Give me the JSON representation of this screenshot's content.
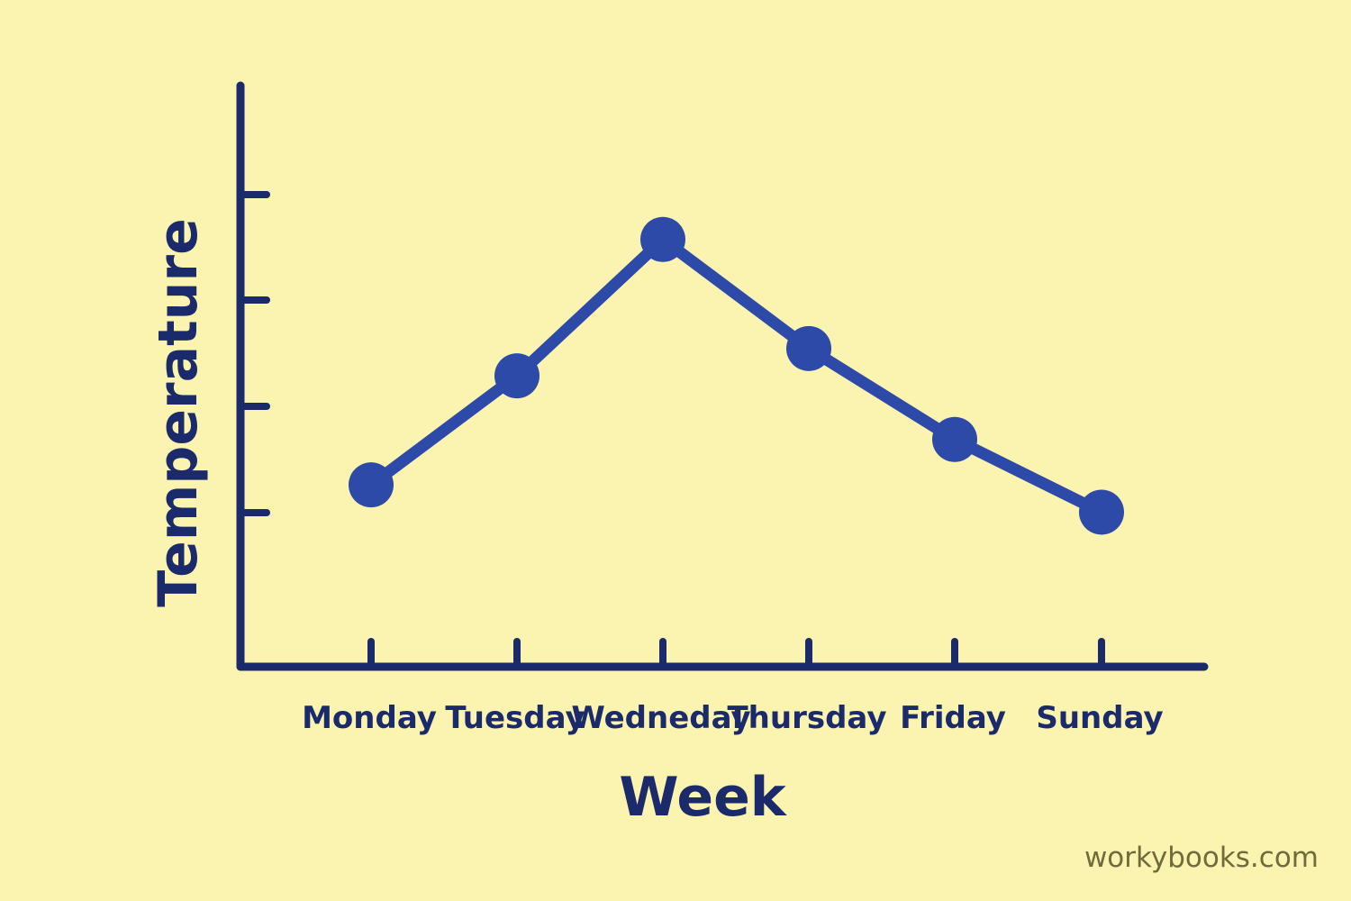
{
  "chart_data": {
    "type": "line",
    "title": "",
    "xlabel": "Week",
    "ylabel": "Temperature",
    "categories": [
      "Monday",
      "Tuesday",
      "Wedneday",
      "Thursday",
      "Friday",
      "Sunday"
    ],
    "series": [
      {
        "values": [
          2.0,
          3.2,
          4.7,
          3.5,
          2.5,
          1.7
        ]
      }
    ],
    "ylim": [
      0,
      5.5
    ],
    "y_tick_count": 4,
    "y_tick_labels_shown": false,
    "grid": false,
    "legend": "none",
    "colors": {
      "background": "#fbf4b1",
      "axis": "#1b2a6b",
      "line": "#2d4aa8",
      "text": "#1b2a6b"
    }
  },
  "watermark": "workybooks.com"
}
